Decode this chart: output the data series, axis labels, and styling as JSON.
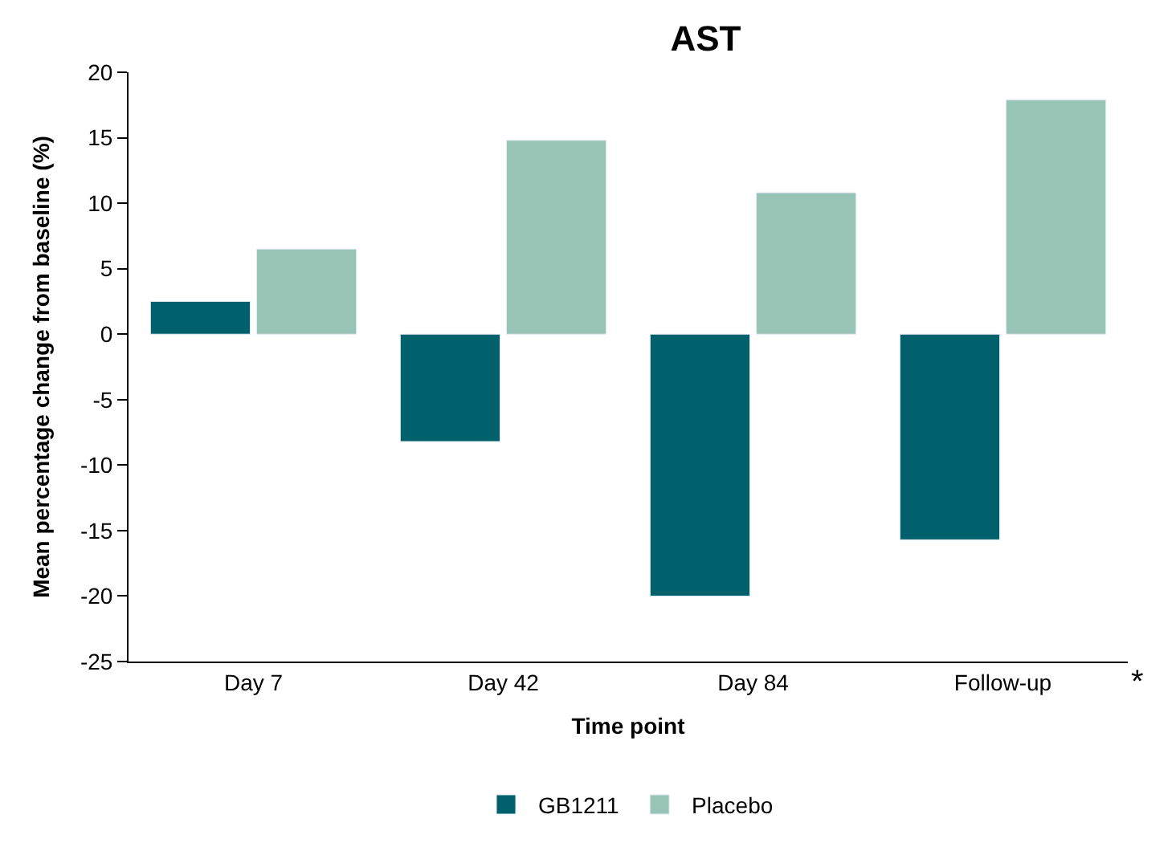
{
  "chart_data": {
    "type": "bar",
    "title": "AST",
    "xlabel": "Time point",
    "ylabel": "Mean percentage change from baseline (%)",
    "categories": [
      "Day 7",
      "Day 42",
      "Day 84",
      "Follow-up"
    ],
    "series": [
      {
        "name": "GB1211",
        "color": "#00606b",
        "values": [
          2.5,
          -8.2,
          -20,
          -15.7
        ]
      },
      {
        "name": "Placebo",
        "color": "#97c4b5",
        "values": [
          6.5,
          14.8,
          10.8,
          17.9
        ]
      }
    ],
    "ylim": [
      -25,
      20
    ],
    "yticks": [
      -25,
      -20,
      -15,
      -10,
      -5,
      0,
      5,
      10,
      15,
      20
    ],
    "legend": "bottom",
    "annotations": [
      "*"
    ]
  }
}
